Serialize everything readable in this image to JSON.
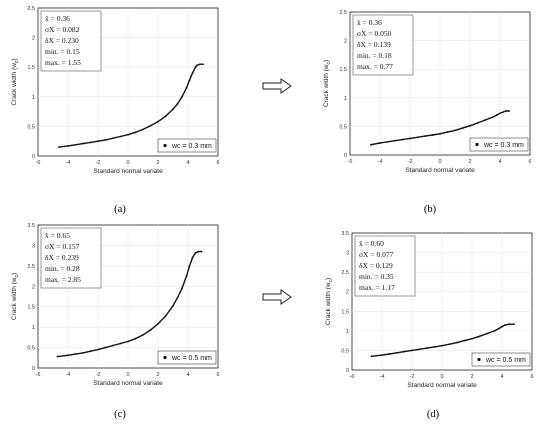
{
  "arrow_icon": "right-arrow-icon",
  "chart_data": [
    {
      "type": "scatter",
      "panel_label": "(a)",
      "xlabel": "Standard normal variate",
      "ylabel": "Crack width (w",
      "ylabel_sub": "c",
      "ylabel_close": ")",
      "xlim": [
        -6,
        6
      ],
      "ylim": [
        0,
        2.5
      ],
      "xticks": [
        "-6",
        "-4",
        "-2",
        "0",
        "2",
        "4",
        "6"
      ],
      "yticks": [
        "0",
        "0.5",
        "1",
        "1.5",
        "2",
        "2.5"
      ],
      "stats": [
        "x̄ = 0.36",
        "σX = 0.082",
        "δX = 0.230",
        "min. = 0.15",
        "max. = 1.55"
      ],
      "legend": "wc = 0.3 mm",
      "grid": true,
      "legend_position": "bottom-right",
      "x": [
        -4.6,
        -4.0,
        -3.5,
        -3.0,
        -2.5,
        -2.0,
        -1.5,
        -1.0,
        -0.5,
        0.0,
        0.5,
        1.0,
        1.5,
        2.0,
        2.5,
        3.0,
        3.3,
        3.6,
        3.9,
        4.1,
        4.3,
        4.5,
        4.6,
        4.8,
        5.0
      ],
      "y": [
        0.15,
        0.17,
        0.19,
        0.21,
        0.23,
        0.25,
        0.27,
        0.3,
        0.33,
        0.36,
        0.4,
        0.45,
        0.51,
        0.58,
        0.67,
        0.79,
        0.88,
        1.0,
        1.15,
        1.28,
        1.4,
        1.5,
        1.53,
        1.55,
        1.55
      ]
    },
    {
      "type": "scatter",
      "panel_label": "(b)",
      "xlabel": "Standard normal variate",
      "ylabel": "Crack width (w",
      "ylabel_sub": "c",
      "ylabel_close": ")",
      "xlim": [
        -6,
        6
      ],
      "ylim": [
        0,
        2.5
      ],
      "xticks": [
        "-6",
        "-4",
        "-2",
        "0",
        "2",
        "4",
        "6"
      ],
      "yticks": [
        "0",
        "0.5",
        "1",
        "1.5",
        "2",
        "2.5"
      ],
      "stats": [
        "x̄ = 0.36",
        "σX = 0.050",
        "δX = 0.139",
        "min. = 0.18",
        "max. = 0.77"
      ],
      "legend": "wc = 0.3 mm",
      "grid": true,
      "legend_position": "bottom-right",
      "x": [
        -4.6,
        -4.0,
        -3.5,
        -3.0,
        -2.5,
        -2.0,
        -1.5,
        -1.0,
        -0.5,
        0.0,
        0.5,
        1.0,
        1.5,
        2.0,
        2.5,
        3.0,
        3.5,
        3.8,
        4.0,
        4.2,
        4.4,
        4.6
      ],
      "y": [
        0.18,
        0.21,
        0.23,
        0.25,
        0.27,
        0.29,
        0.31,
        0.33,
        0.35,
        0.37,
        0.4,
        0.43,
        0.47,
        0.51,
        0.56,
        0.61,
        0.66,
        0.7,
        0.73,
        0.75,
        0.77,
        0.77
      ]
    },
    {
      "type": "scatter",
      "panel_label": "(c)",
      "xlabel": "Standard normal variate",
      "ylabel": "Crack width (w",
      "ylabel_sub": "c",
      "ylabel_close": ")",
      "xlim": [
        -6,
        6
      ],
      "ylim": [
        0,
        3.5
      ],
      "xticks": [
        "-6",
        "-4",
        "-2",
        "0",
        "2",
        "4",
        "6"
      ],
      "yticks": [
        "0",
        "0.5",
        "1",
        "1.5",
        "2",
        "2.5",
        "3",
        "3.5"
      ],
      "stats": [
        "x̄ = 0.65",
        "σX = 0.157",
        "δX = 0.239",
        "min. = 0.28",
        "max. = 2.85"
      ],
      "legend": "wc = 0.5 mm",
      "grid": true,
      "legend_position": "bottom-right",
      "x": [
        -4.7,
        -4.0,
        -3.5,
        -3.0,
        -2.5,
        -2.0,
        -1.5,
        -1.0,
        -0.5,
        0.0,
        0.5,
        1.0,
        1.5,
        2.0,
        2.5,
        3.0,
        3.3,
        3.6,
        3.9,
        4.1,
        4.3,
        4.5,
        4.7,
        4.9
      ],
      "y": [
        0.28,
        0.31,
        0.34,
        0.37,
        0.41,
        0.45,
        0.5,
        0.55,
        0.6,
        0.65,
        0.72,
        0.81,
        0.93,
        1.08,
        1.27,
        1.52,
        1.72,
        1.95,
        2.25,
        2.5,
        2.7,
        2.82,
        2.85,
        2.85
      ]
    },
    {
      "type": "scatter",
      "panel_label": "(d)",
      "xlabel": "Standard normal variate",
      "ylabel": "Crack width (w",
      "ylabel_sub": "c",
      "ylabel_close": ")",
      "xlim": [
        -6,
        6
      ],
      "ylim": [
        0,
        3.5
      ],
      "xticks": [
        "-6",
        "-4",
        "-2",
        "0",
        "2",
        "4",
        "6"
      ],
      "yticks": [
        "0",
        "0.5",
        "1",
        "1.5",
        "2",
        "2.5",
        "3",
        "3.5"
      ],
      "stats": [
        "x̄ = 0.60",
        "σX = 0.077",
        "δX = 0.129",
        "min. = 0.35",
        "max. = 1.17"
      ],
      "legend": "wc = 0.5 mm",
      "grid": true,
      "legend_position": "bottom-right",
      "x": [
        -4.7,
        -4.0,
        -3.5,
        -3.0,
        -2.5,
        -2.0,
        -1.5,
        -1.0,
        -0.5,
        0.0,
        0.5,
        1.0,
        1.5,
        2.0,
        2.5,
        3.0,
        3.5,
        3.8,
        4.0,
        4.2,
        4.5,
        4.8
      ],
      "y": [
        0.35,
        0.38,
        0.41,
        0.44,
        0.47,
        0.5,
        0.53,
        0.56,
        0.59,
        0.62,
        0.66,
        0.7,
        0.75,
        0.8,
        0.86,
        0.93,
        1.0,
        1.06,
        1.11,
        1.15,
        1.17,
        1.17
      ]
    }
  ]
}
